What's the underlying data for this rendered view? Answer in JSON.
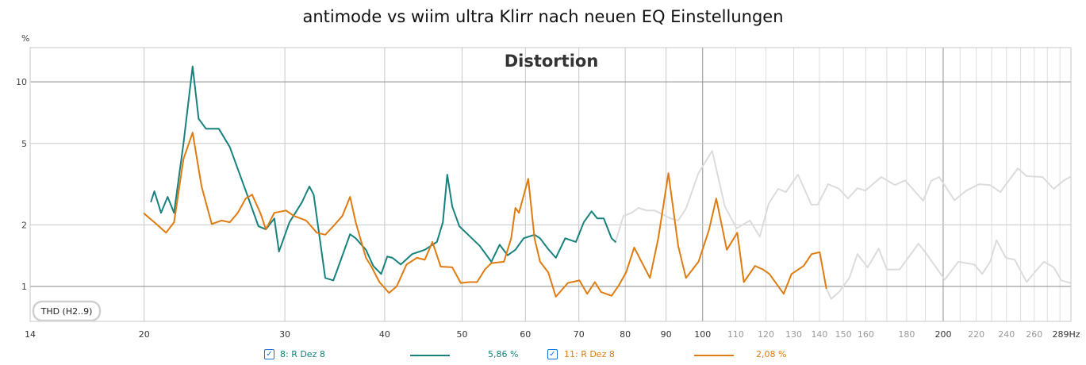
{
  "chart_data": {
    "type": "line",
    "title": "antimode vs wiim ultra Klirr nach neuen EQ Einstellungen",
    "subtitle": "Distortion",
    "ylabel": "%",
    "xunit": "Hz",
    "xscale": "log",
    "yscale": "log",
    "xlim": [
      14.4,
      289
    ],
    "ylim": [
      0.675,
      14.7
    ],
    "grid": true,
    "x_tick_labels": [
      {
        "v": 14.4,
        "t": "14",
        "major": true
      },
      {
        "v": 20,
        "t": "20",
        "major": true
      },
      {
        "v": 30,
        "t": "30",
        "major": true
      },
      {
        "v": 40,
        "t": "40",
        "major": true
      },
      {
        "v": 50,
        "t": "50",
        "major": true
      },
      {
        "v": 60,
        "t": "60",
        "major": true
      },
      {
        "v": 70,
        "t": "70",
        "major": true
      },
      {
        "v": 80,
        "t": "80",
        "major": true
      },
      {
        "v": 90,
        "t": "90",
        "major": true
      },
      {
        "v": 100,
        "t": "100",
        "major": true
      },
      {
        "v": 110,
        "t": "110",
        "major": false
      },
      {
        "v": 120,
        "t": "120",
        "major": false
      },
      {
        "v": 130,
        "t": "130",
        "major": false
      },
      {
        "v": 140,
        "t": "140",
        "major": false
      },
      {
        "v": 150,
        "t": "150",
        "major": false
      },
      {
        "v": 160,
        "t": "160",
        "major": false
      },
      {
        "v": 180,
        "t": "180",
        "major": false
      },
      {
        "v": 200,
        "t": "200",
        "major": true
      },
      {
        "v": 220,
        "t": "220",
        "major": false
      },
      {
        "v": 240,
        "t": "240",
        "major": false
      },
      {
        "v": 260,
        "t": "260",
        "major": false
      },
      {
        "v": 289,
        "t": "289Hz",
        "major": true
      }
    ],
    "y_tick_labels": [
      {
        "v": 10,
        "t": "10"
      },
      {
        "v": 5,
        "t": "5"
      },
      {
        "v": 2,
        "t": "2"
      },
      {
        "v": 1,
        "t": "1"
      }
    ],
    "annotation": "THD (H2..9)",
    "series": [
      {
        "name": "8: R Dez 8",
        "value_label": "5,86 %",
        "color": "#17827d",
        "points": [
          [
            20.4,
            2.6
          ],
          [
            20.6,
            2.92
          ],
          [
            21.0,
            2.29
          ],
          [
            21.4,
            2.74
          ],
          [
            21.8,
            2.29
          ],
          [
            22.4,
            5.0
          ],
          [
            23.0,
            11.9
          ],
          [
            23.4,
            6.6
          ],
          [
            23.9,
            5.9
          ],
          [
            24.8,
            5.9
          ],
          [
            25.6,
            4.8
          ],
          [
            26.8,
            2.94
          ],
          [
            27.8,
            1.97
          ],
          [
            28.4,
            1.9
          ],
          [
            29.1,
            2.15
          ],
          [
            29.5,
            1.48
          ],
          [
            30.4,
            2.06
          ],
          [
            31.5,
            2.57
          ],
          [
            32.2,
            3.08
          ],
          [
            32.6,
            2.81
          ],
          [
            33.7,
            1.1
          ],
          [
            34.5,
            1.07
          ],
          [
            34.9,
            1.21
          ],
          [
            36.2,
            1.8
          ],
          [
            36.8,
            1.72
          ],
          [
            37.9,
            1.51
          ],
          [
            38.7,
            1.26
          ],
          [
            39.6,
            1.15
          ],
          [
            40.3,
            1.4
          ],
          [
            40.9,
            1.38
          ],
          [
            41.9,
            1.28
          ],
          [
            43.3,
            1.44
          ],
          [
            44.9,
            1.51
          ],
          [
            46.5,
            1.65
          ],
          [
            47.3,
            2.06
          ],
          [
            47.9,
            3.52
          ],
          [
            48.6,
            2.46
          ],
          [
            49.6,
            1.97
          ],
          [
            50.8,
            1.8
          ],
          [
            52.6,
            1.58
          ],
          [
            54.4,
            1.32
          ],
          [
            55.7,
            1.6
          ],
          [
            57.0,
            1.42
          ],
          [
            58.3,
            1.51
          ],
          [
            59.7,
            1.72
          ],
          [
            61.6,
            1.79
          ],
          [
            62.6,
            1.72
          ],
          [
            64.1,
            1.52
          ],
          [
            65.5,
            1.38
          ],
          [
            67.3,
            1.72
          ],
          [
            69.4,
            1.65
          ],
          [
            71.0,
            2.06
          ],
          [
            72.6,
            2.33
          ],
          [
            73.8,
            2.15
          ],
          [
            75.2,
            2.15
          ],
          [
            76.9,
            1.72
          ],
          [
            77.8,
            1.65
          ]
        ]
      },
      {
        "name": "11: R Dez 8",
        "value_label": "2,08 %",
        "color": "#e07b10",
        "points": [
          [
            20.0,
            2.27
          ],
          [
            20.6,
            2.06
          ],
          [
            21.3,
            1.83
          ],
          [
            21.8,
            2.06
          ],
          [
            22.4,
            4.2
          ],
          [
            23.0,
            5.65
          ],
          [
            23.6,
            3.08
          ],
          [
            24.3,
            2.02
          ],
          [
            25.0,
            2.1
          ],
          [
            25.6,
            2.06
          ],
          [
            26.2,
            2.29
          ],
          [
            26.8,
            2.69
          ],
          [
            27.3,
            2.81
          ],
          [
            28.0,
            2.25
          ],
          [
            28.4,
            1.9
          ],
          [
            29.1,
            2.29
          ],
          [
            30.1,
            2.35
          ],
          [
            30.8,
            2.21
          ],
          [
            31.9,
            2.1
          ],
          [
            32.9,
            1.83
          ],
          [
            33.7,
            1.79
          ],
          [
            34.5,
            1.97
          ],
          [
            35.4,
            2.21
          ],
          [
            36.2,
            2.74
          ],
          [
            36.8,
            2.06
          ],
          [
            37.9,
            1.38
          ],
          [
            38.5,
            1.25
          ],
          [
            39.4,
            1.05
          ],
          [
            40.5,
            0.93
          ],
          [
            41.4,
            1.0
          ],
          [
            42.6,
            1.28
          ],
          [
            43.9,
            1.38
          ],
          [
            44.9,
            1.35
          ],
          [
            45.9,
            1.65
          ],
          [
            47.0,
            1.25
          ],
          [
            48.6,
            1.24
          ],
          [
            49.8,
            1.04
          ],
          [
            51.1,
            1.05
          ],
          [
            52.2,
            1.05
          ],
          [
            53.4,
            1.21
          ],
          [
            54.4,
            1.3
          ],
          [
            56.4,
            1.32
          ],
          [
            57.6,
            1.72
          ],
          [
            58.3,
            2.42
          ],
          [
            58.9,
            2.29
          ],
          [
            60.5,
            3.36
          ],
          [
            61.6,
            1.72
          ],
          [
            62.6,
            1.32
          ],
          [
            64.1,
            1.17
          ],
          [
            65.5,
            0.89
          ],
          [
            67.8,
            1.04
          ],
          [
            70.1,
            1.07
          ],
          [
            71.7,
            0.92
          ],
          [
            73.3,
            1.05
          ],
          [
            74.6,
            0.94
          ],
          [
            76.9,
            0.9
          ],
          [
            78.5,
            1.01
          ],
          [
            80.2,
            1.17
          ],
          [
            82.1,
            1.55
          ],
          [
            83.6,
            1.35
          ],
          [
            85.9,
            1.1
          ],
          [
            88.0,
            1.72
          ],
          [
            90.6,
            3.58
          ],
          [
            93.2,
            1.58
          ],
          [
            95.3,
            1.1
          ],
          [
            98.8,
            1.32
          ],
          [
            101.8,
            1.88
          ],
          [
            104.0,
            2.69
          ],
          [
            107.2,
            1.51
          ],
          [
            110.5,
            1.83
          ],
          [
            112.6,
            1.05
          ],
          [
            116.3,
            1.26
          ],
          [
            119.0,
            1.21
          ],
          [
            121.2,
            1.15
          ],
          [
            126.3,
            0.92
          ],
          [
            129.2,
            1.15
          ],
          [
            133.8,
            1.26
          ],
          [
            136.9,
            1.44
          ],
          [
            140.1,
            1.47
          ],
          [
            142.8,
            0.98
          ]
        ]
      },
      {
        "name": "upper-faded",
        "color": "#dcdcdc",
        "points": [
          [
            77.8,
            1.65
          ],
          [
            79.6,
            2.21
          ],
          [
            81.5,
            2.29
          ],
          [
            83.1,
            2.42
          ],
          [
            85.1,
            2.35
          ],
          [
            87.1,
            2.35
          ],
          [
            89.1,
            2.25
          ],
          [
            91.1,
            2.15
          ],
          [
            93.2,
            2.1
          ],
          [
            95.3,
            2.4
          ],
          [
            98.8,
            3.58
          ],
          [
            102.8,
            4.6
          ],
          [
            106.6,
            2.46
          ],
          [
            110.3,
            1.92
          ],
          [
            114.6,
            2.1
          ],
          [
            117.9,
            1.75
          ],
          [
            120.9,
            2.53
          ],
          [
            124.3,
            3.0
          ],
          [
            127.1,
            2.89
          ],
          [
            131.6,
            3.52
          ],
          [
            136.8,
            2.51
          ],
          [
            139.3,
            2.51
          ],
          [
            143.6,
            3.16
          ],
          [
            148.2,
            3.0
          ],
          [
            152.0,
            2.69
          ],
          [
            156.2,
            3.02
          ],
          [
            159.8,
            2.94
          ],
          [
            167.3,
            3.43
          ],
          [
            174.0,
            3.13
          ],
          [
            179.2,
            3.3
          ],
          [
            188.8,
            2.62
          ],
          [
            193.2,
            3.28
          ],
          [
            197.7,
            3.43
          ],
          [
            206.6,
            2.64
          ],
          [
            213.8,
            2.94
          ],
          [
            221.8,
            3.16
          ],
          [
            229.0,
            3.13
          ],
          [
            235.8,
            2.89
          ],
          [
            248.1,
            3.78
          ],
          [
            254.4,
            3.46
          ],
          [
            266.2,
            3.43
          ],
          [
            275.0,
            3.0
          ],
          [
            283.2,
            3.3
          ],
          [
            288.4,
            3.43
          ]
        ]
      },
      {
        "name": "lower-faded",
        "color": "#dcdcdc",
        "points": [
          [
            142.8,
            0.98
          ],
          [
            144.8,
            0.87
          ],
          [
            148.2,
            0.94
          ],
          [
            152.6,
            1.1
          ],
          [
            156.2,
            1.44
          ],
          [
            160.9,
            1.24
          ],
          [
            166.1,
            1.53
          ],
          [
            170.0,
            1.21
          ],
          [
            176.4,
            1.21
          ],
          [
            186.3,
            1.62
          ],
          [
            190.7,
            1.44
          ],
          [
            200.9,
            1.08
          ],
          [
            208.9,
            1.32
          ],
          [
            218.7,
            1.28
          ],
          [
            223.8,
            1.15
          ],
          [
            229.0,
            1.32
          ],
          [
            233.2,
            1.68
          ],
          [
            239.6,
            1.38
          ],
          [
            245.8,
            1.35
          ],
          [
            254.4,
            1.05
          ],
          [
            260.2,
            1.17
          ],
          [
            267.4,
            1.32
          ],
          [
            275.0,
            1.24
          ],
          [
            281.2,
            1.07
          ],
          [
            288.4,
            1.04
          ]
        ]
      }
    ]
  }
}
